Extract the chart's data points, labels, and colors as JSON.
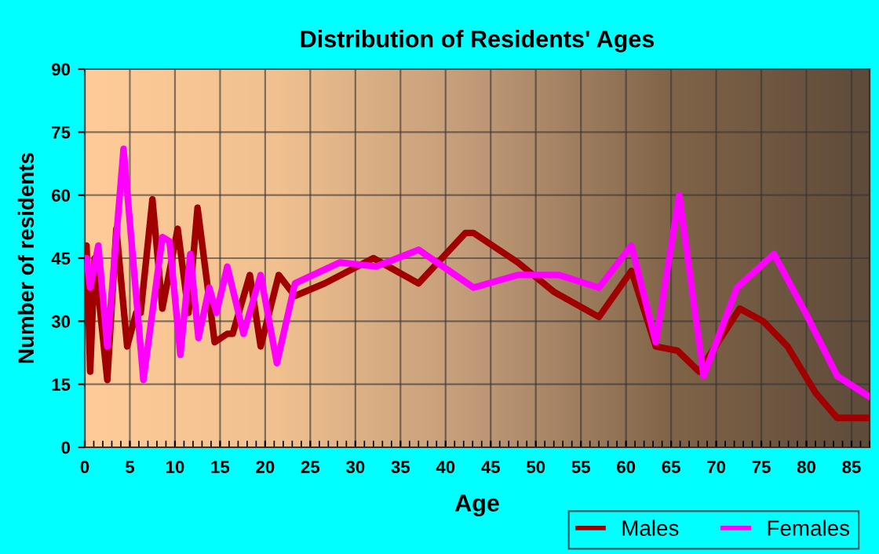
{
  "chart_data": {
    "type": "line",
    "title": "Distribution of Residents' Ages",
    "xlabel": "Age",
    "ylabel": "Number of residents",
    "xlim": [
      0,
      87
    ],
    "ylim": [
      0,
      90
    ],
    "xticks": [
      0,
      5,
      10,
      15,
      20,
      25,
      30,
      35,
      40,
      45,
      50,
      55,
      60,
      65,
      70,
      75,
      80,
      85
    ],
    "yticks": [
      0,
      15,
      30,
      45,
      60,
      75,
      90
    ],
    "grid": true,
    "legend": "bottom right",
    "line_style": "solid",
    "marker": "none",
    "series": [
      {
        "name": "Males",
        "color": "#a00000",
        "x": [
          0.2,
          0.6,
          1.1,
          2.5,
          3.5,
          4.7,
          5.7,
          6.2,
          7.5,
          8.6,
          10.3,
          11.5,
          12.5,
          14.4,
          15.8,
          16.4,
          18.3,
          19.5,
          21.5,
          23.3,
          26.6,
          32,
          37,
          42.2,
          43.1,
          48,
          52,
          57,
          60.6,
          63.3,
          65.7,
          68.1,
          72.6,
          75.2,
          77.9,
          81,
          83.4,
          87
        ],
        "values": [
          48,
          18,
          45,
          16,
          52,
          24,
          32,
          32,
          59,
          33,
          52,
          32,
          57,
          25,
          27,
          27,
          41,
          24,
          41,
          36,
          39,
          45,
          39,
          51,
          51,
          44,
          37,
          31,
          42,
          24,
          23,
          18,
          33,
          30,
          24,
          13,
          7,
          7
        ]
      },
      {
        "name": "Females",
        "color": "#ff00ff",
        "x": [
          0.2,
          0.6,
          1.5,
          2.5,
          4.3,
          6.5,
          8.6,
          9.4,
          10.6,
          11.7,
          12.6,
          13.8,
          14.6,
          15.8,
          17.6,
          19.5,
          21.3,
          23.3,
          28.3,
          32.3,
          37,
          43.1,
          48,
          52.6,
          57,
          60.6,
          63.3,
          65.9,
          68.6,
          72.3,
          76.4,
          79.9,
          83.4,
          87
        ],
        "values": [
          45,
          38,
          48,
          24,
          71,
          16,
          50,
          49,
          22,
          46,
          26,
          38,
          32,
          43,
          27,
          41,
          20,
          39,
          44,
          43,
          47,
          38,
          41,
          41,
          38,
          48,
          25,
          60,
          17,
          38,
          46,
          32,
          17,
          12
        ]
      }
    ]
  }
}
